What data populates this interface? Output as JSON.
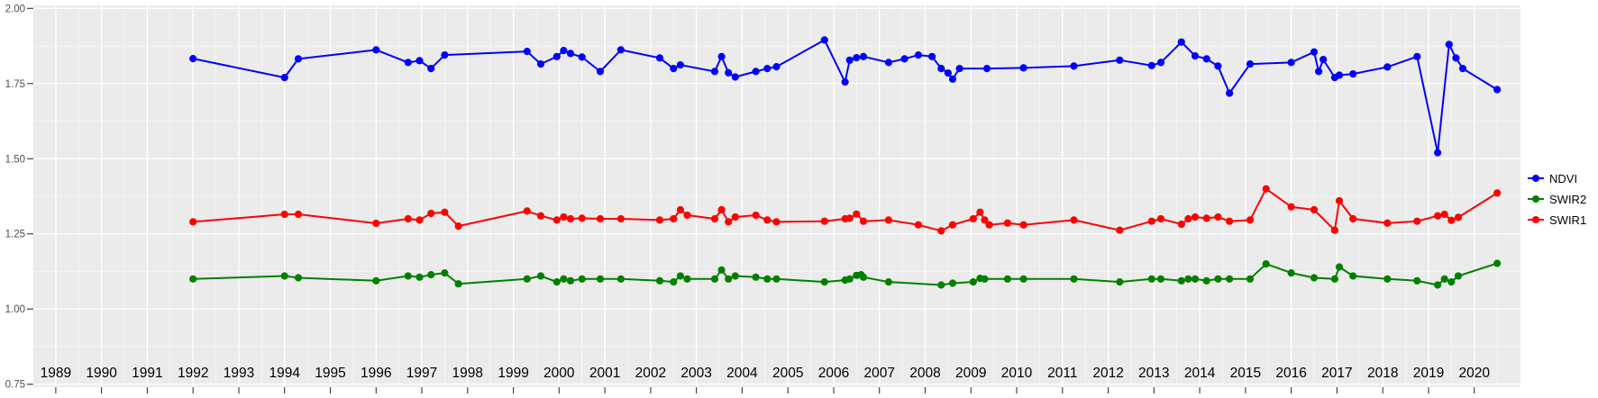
{
  "chart_data": {
    "type": "line",
    "title": "",
    "xlabel": "",
    "ylabel": "",
    "x_domain": [
      1988.51,
      2021.01
    ],
    "y_domain": [
      0.74,
      2.01
    ],
    "x_ticks": [
      1989,
      1990,
      1991,
      1992,
      1993,
      1994,
      1995,
      1996,
      1997,
      1998,
      1999,
      2000,
      2001,
      2002,
      2003,
      2004,
      2005,
      2006,
      2007,
      2008,
      2009,
      2010,
      2011,
      2012,
      2013,
      2014,
      2015,
      2016,
      2017,
      2018,
      2019,
      2020
    ],
    "y_ticks": [
      0.75,
      1.0,
      1.25,
      1.5,
      1.75,
      2.0
    ],
    "y_tick_labels": [
      "0.75",
      "1.00",
      "1.25",
      "1.50",
      "1.75",
      "2.00"
    ],
    "grid": {
      "major": true,
      "minor": true
    },
    "legend_position": "right-center",
    "panel_background": "#EBEBEB",
    "grid_color": "#FFFFFF",
    "axis_text_color": "#4D4D4D",
    "x_label_color": "#000000",
    "tick_color": "#333333",
    "series": [
      {
        "name": "NDVI",
        "color": "#0000FF",
        "points": [
          [
            1992.0,
            1.833
          ],
          [
            1994.0,
            1.77
          ],
          [
            1994.3,
            1.832
          ],
          [
            1996.0,
            1.862
          ],
          [
            1996.7,
            1.82
          ],
          [
            1996.95,
            1.826
          ],
          [
            1997.2,
            1.8
          ],
          [
            1997.5,
            1.845
          ],
          [
            1999.3,
            1.857
          ],
          [
            1999.6,
            1.815
          ],
          [
            1999.95,
            1.84
          ],
          [
            2000.1,
            1.86
          ],
          [
            2000.25,
            1.85
          ],
          [
            2000.5,
            1.838
          ],
          [
            2000.9,
            1.79
          ],
          [
            2001.35,
            1.862
          ],
          [
            2002.2,
            1.835
          ],
          [
            2002.5,
            1.8
          ],
          [
            2002.65,
            1.812
          ],
          [
            2003.4,
            1.79
          ],
          [
            2003.55,
            1.84
          ],
          [
            2003.7,
            1.786
          ],
          [
            2003.85,
            1.772
          ],
          [
            2004.3,
            1.79
          ],
          [
            2004.55,
            1.8
          ],
          [
            2004.75,
            1.806
          ],
          [
            2005.8,
            1.895
          ],
          [
            2006.25,
            1.755
          ],
          [
            2006.35,
            1.828
          ],
          [
            2006.5,
            1.836
          ],
          [
            2006.65,
            1.84
          ],
          [
            2007.2,
            1.82
          ],
          [
            2007.55,
            1.832
          ],
          [
            2007.85,
            1.845
          ],
          [
            2008.15,
            1.84
          ],
          [
            2008.35,
            1.8
          ],
          [
            2008.5,
            1.785
          ],
          [
            2008.6,
            1.765
          ],
          [
            2008.75,
            1.8
          ],
          [
            2009.35,
            1.8
          ],
          [
            2010.15,
            1.802
          ],
          [
            2011.25,
            1.808
          ],
          [
            2012.25,
            1.828
          ],
          [
            2012.95,
            1.81
          ],
          [
            2013.15,
            1.82
          ],
          [
            2013.6,
            1.888
          ],
          [
            2013.9,
            1.842
          ],
          [
            2014.15,
            1.832
          ],
          [
            2014.4,
            1.808
          ],
          [
            2014.65,
            1.718
          ],
          [
            2015.1,
            1.815
          ],
          [
            2016.0,
            1.82
          ],
          [
            2016.5,
            1.855
          ],
          [
            2016.6,
            1.79
          ],
          [
            2016.7,
            1.83
          ],
          [
            2016.95,
            1.77
          ],
          [
            2017.05,
            1.778
          ],
          [
            2017.35,
            1.782
          ],
          [
            2018.1,
            1.805
          ],
          [
            2018.75,
            1.84
          ],
          [
            2019.2,
            1.52
          ],
          [
            2019.45,
            1.88
          ],
          [
            2019.6,
            1.835
          ],
          [
            2019.75,
            1.8
          ],
          [
            2020.5,
            1.73
          ]
        ]
      },
      {
        "name": "SWIR2",
        "color": "#008000",
        "points": [
          [
            1992.0,
            1.1
          ],
          [
            1994.0,
            1.11
          ],
          [
            1994.3,
            1.104
          ],
          [
            1996.0,
            1.094
          ],
          [
            1996.7,
            1.11
          ],
          [
            1996.95,
            1.106
          ],
          [
            1997.2,
            1.114
          ],
          [
            1997.5,
            1.12
          ],
          [
            1997.8,
            1.084
          ],
          [
            1999.3,
            1.1
          ],
          [
            1999.6,
            1.11
          ],
          [
            1999.95,
            1.09
          ],
          [
            2000.1,
            1.1
          ],
          [
            2000.25,
            1.094
          ],
          [
            2000.5,
            1.1
          ],
          [
            2000.9,
            1.1
          ],
          [
            2001.35,
            1.1
          ],
          [
            2002.2,
            1.094
          ],
          [
            2002.5,
            1.09
          ],
          [
            2002.65,
            1.11
          ],
          [
            2002.8,
            1.1
          ],
          [
            2003.4,
            1.1
          ],
          [
            2003.55,
            1.13
          ],
          [
            2003.7,
            1.1
          ],
          [
            2003.85,
            1.11
          ],
          [
            2004.3,
            1.106
          ],
          [
            2004.55,
            1.1
          ],
          [
            2004.75,
            1.1
          ],
          [
            2005.8,
            1.09
          ],
          [
            2006.25,
            1.096
          ],
          [
            2006.35,
            1.1
          ],
          [
            2006.5,
            1.112
          ],
          [
            2006.6,
            1.114
          ],
          [
            2006.65,
            1.106
          ],
          [
            2007.2,
            1.09
          ],
          [
            2008.35,
            1.08
          ],
          [
            2008.6,
            1.086
          ],
          [
            2009.05,
            1.09
          ],
          [
            2009.2,
            1.102
          ],
          [
            2009.3,
            1.1
          ],
          [
            2009.8,
            1.1
          ],
          [
            2010.15,
            1.1
          ],
          [
            2011.25,
            1.1
          ],
          [
            2012.25,
            1.09
          ],
          [
            2012.95,
            1.1
          ],
          [
            2013.15,
            1.1
          ],
          [
            2013.6,
            1.094
          ],
          [
            2013.75,
            1.1
          ],
          [
            2013.9,
            1.1
          ],
          [
            2014.15,
            1.094
          ],
          [
            2014.4,
            1.1
          ],
          [
            2014.65,
            1.1
          ],
          [
            2015.1,
            1.1
          ],
          [
            2015.45,
            1.15
          ],
          [
            2016.0,
            1.12
          ],
          [
            2016.5,
            1.104
          ],
          [
            2016.95,
            1.1
          ],
          [
            2017.05,
            1.14
          ],
          [
            2017.35,
            1.11
          ],
          [
            2018.1,
            1.1
          ],
          [
            2018.75,
            1.094
          ],
          [
            2019.2,
            1.08
          ],
          [
            2019.35,
            1.1
          ],
          [
            2019.5,
            1.09
          ],
          [
            2019.65,
            1.11
          ],
          [
            2020.5,
            1.152
          ]
        ]
      },
      {
        "name": "SWIR1",
        "color": "#FF0000",
        "points": [
          [
            1992.0,
            1.29
          ],
          [
            1994.0,
            1.315
          ],
          [
            1994.3,
            1.315
          ],
          [
            1996.0,
            1.285
          ],
          [
            1996.7,
            1.3
          ],
          [
            1996.95,
            1.296
          ],
          [
            1997.2,
            1.318
          ],
          [
            1997.5,
            1.322
          ],
          [
            1997.8,
            1.276
          ],
          [
            1999.3,
            1.326
          ],
          [
            1999.6,
            1.31
          ],
          [
            1999.95,
            1.296
          ],
          [
            2000.1,
            1.306
          ],
          [
            2000.25,
            1.3
          ],
          [
            2000.5,
            1.302
          ],
          [
            2000.9,
            1.3
          ],
          [
            2001.35,
            1.3
          ],
          [
            2002.2,
            1.296
          ],
          [
            2002.5,
            1.3
          ],
          [
            2002.65,
            1.33
          ],
          [
            2002.8,
            1.312
          ],
          [
            2003.4,
            1.3
          ],
          [
            2003.55,
            1.33
          ],
          [
            2003.7,
            1.29
          ],
          [
            2003.85,
            1.306
          ],
          [
            2004.3,
            1.312
          ],
          [
            2004.55,
            1.296
          ],
          [
            2004.75,
            1.29
          ],
          [
            2005.8,
            1.292
          ],
          [
            2006.25,
            1.3
          ],
          [
            2006.35,
            1.302
          ],
          [
            2006.5,
            1.316
          ],
          [
            2006.65,
            1.292
          ],
          [
            2007.2,
            1.296
          ],
          [
            2007.85,
            1.28
          ],
          [
            2008.35,
            1.26
          ],
          [
            2008.6,
            1.28
          ],
          [
            2009.05,
            1.3
          ],
          [
            2009.2,
            1.322
          ],
          [
            2009.3,
            1.296
          ],
          [
            2009.4,
            1.28
          ],
          [
            2009.8,
            1.286
          ],
          [
            2010.15,
            1.28
          ],
          [
            2011.25,
            1.296
          ],
          [
            2012.25,
            1.262
          ],
          [
            2012.95,
            1.292
          ],
          [
            2013.15,
            1.3
          ],
          [
            2013.6,
            1.282
          ],
          [
            2013.75,
            1.3
          ],
          [
            2013.9,
            1.306
          ],
          [
            2014.15,
            1.302
          ],
          [
            2014.4,
            1.306
          ],
          [
            2014.65,
            1.292
          ],
          [
            2015.1,
            1.296
          ],
          [
            2015.45,
            1.4
          ],
          [
            2016.0,
            1.34
          ],
          [
            2016.5,
            1.33
          ],
          [
            2016.95,
            1.262
          ],
          [
            2017.05,
            1.36
          ],
          [
            2017.35,
            1.3
          ],
          [
            2018.1,
            1.286
          ],
          [
            2018.75,
            1.292
          ],
          [
            2019.2,
            1.31
          ],
          [
            2019.35,
            1.315
          ],
          [
            2019.5,
            1.295
          ],
          [
            2019.65,
            1.305
          ],
          [
            2020.5,
            1.386
          ]
        ]
      }
    ],
    "legend": {
      "items": [
        {
          "label": "NDVI",
          "color": "#0000FF"
        },
        {
          "label": "SWIR2",
          "color": "#008000"
        },
        {
          "label": "SWIR1",
          "color": "#FF0000"
        }
      ]
    }
  }
}
